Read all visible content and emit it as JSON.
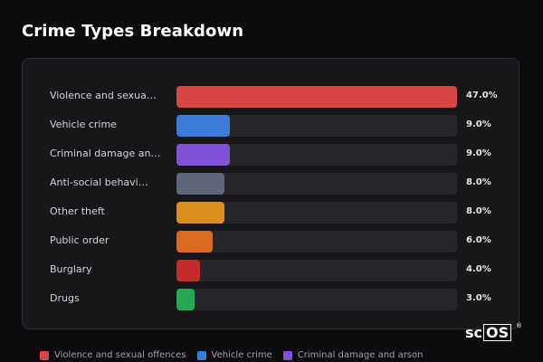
{
  "title": "Crime Types Breakdown",
  "watermark": "scOS",
  "chart_data": {
    "type": "bar",
    "orientation": "horizontal",
    "title": "Crime Types Breakdown",
    "xlim": [
      0,
      47
    ],
    "unit": "%",
    "categories": [
      "Violence and sexual offences",
      "Vehicle crime",
      "Criminal damage and arson",
      "Anti-social behaviour",
      "Other theft",
      "Public order",
      "Burglary",
      "Drugs"
    ],
    "display_labels": [
      "Violence and sexua…",
      "Vehicle crime",
      "Criminal damage an…",
      "Anti-social behavi…",
      "Other theft",
      "Public order",
      "Burglary",
      "Drugs"
    ],
    "values": [
      47.0,
      9.0,
      9.0,
      8.0,
      8.0,
      6.0,
      4.0,
      3.0
    ],
    "value_labels": [
      "47.0%",
      "9.0%",
      "9.0%",
      "8.0%",
      "8.0%",
      "6.0%",
      "4.0%",
      "3.0%"
    ],
    "colors": [
      "#d94545",
      "#3b7bd9",
      "#8050d8",
      "#5e6878",
      "#d98f1a",
      "#d96a1f",
      "#c42b2b",
      "#25a956"
    ],
    "legend": [
      {
        "label": "Violence and sexual offences",
        "color": "#d94545"
      },
      {
        "label": "Vehicle crime",
        "color": "#3b7bd9"
      },
      {
        "label": "Criminal damage and arson",
        "color": "#8050d8"
      }
    ]
  }
}
